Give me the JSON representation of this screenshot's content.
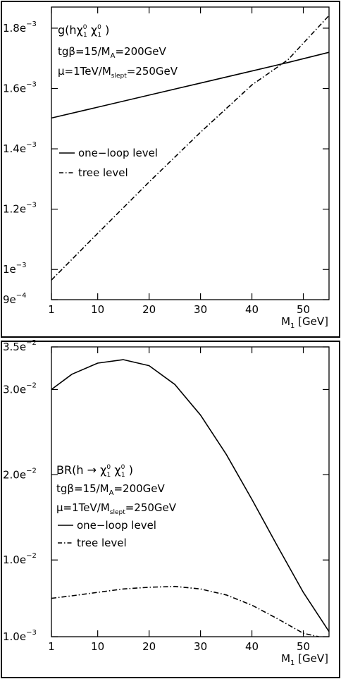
{
  "chart_data": [
    {
      "type": "line",
      "title": "g(hχ₁⁰χ₁⁰)",
      "annotations": [
        "tgβ=15/M_A=200GeV",
        "μ=1TeV/M_slept=250GeV"
      ],
      "xlabel": "M₁ [GeV]",
      "ylabel": "",
      "xlim": [
        1,
        55
      ],
      "ylim": [
        0.0009,
        0.00187
      ],
      "x_ticks": [
        {
          "value": 1,
          "label": "1"
        },
        {
          "value": 10,
          "label": "10"
        },
        {
          "value": 20,
          "label": "20"
        },
        {
          "value": 30,
          "label": "30"
        },
        {
          "value": 40,
          "label": "40"
        },
        {
          "value": 50,
          "label": "50"
        }
      ],
      "y_ticks": [
        {
          "value": 0.0009,
          "mant": "9e",
          "exp": "−4"
        },
        {
          "value": 0.001,
          "mant": "1e",
          "exp": "−3"
        },
        {
          "value": 0.0012,
          "mant": "1.2e",
          "exp": "−3"
        },
        {
          "value": 0.0014,
          "mant": "1.4e",
          "exp": "−3"
        },
        {
          "value": 0.0016,
          "mant": "1.6e",
          "exp": "−3"
        },
        {
          "value": 0.0018,
          "mant": "1.8e",
          "exp": "−3"
        }
      ],
      "grid": false,
      "legend_position": "middle-left",
      "series": [
        {
          "name": "one−loop level",
          "style": "solid",
          "x": [
            1,
            10,
            20,
            30,
            40,
            47,
            55
          ],
          "y": [
            0.001502,
            0.001538,
            0.001578,
            0.001618,
            0.001658,
            0.001686,
            0.00172
          ]
        },
        {
          "name": "tree level",
          "style": "dashdot",
          "x": [
            1,
            10,
            20,
            30,
            40,
            47,
            55
          ],
          "y": [
            0.000965,
            0.00112,
            0.00129,
            0.001455,
            0.001612,
            0.001695,
            0.001842
          ]
        }
      ]
    },
    {
      "type": "line",
      "title": "BR(h → χ₁⁰χ₁⁰)",
      "annotations": [
        "tgβ=15/M_A=200GeV",
        "μ=1TeV/M_slept=250GeV"
      ],
      "xlabel": "M₁ [GeV]",
      "ylabel": "",
      "xlim": [
        1,
        55
      ],
      "ylim": [
        0.001,
        0.035
      ],
      "x_ticks": [
        {
          "value": 1,
          "label": "1"
        },
        {
          "value": 10,
          "label": "10"
        },
        {
          "value": 20,
          "label": "20"
        },
        {
          "value": 30,
          "label": "30"
        },
        {
          "value": 40,
          "label": "40"
        },
        {
          "value": 50,
          "label": "50"
        }
      ],
      "y_ticks": [
        {
          "value": 0.001,
          "mant": "1.0e",
          "exp": "−3"
        },
        {
          "value": 0.01,
          "mant": "1.0e",
          "exp": "−2"
        },
        {
          "value": 0.02,
          "mant": "2.0e",
          "exp": "−2"
        },
        {
          "value": 0.03,
          "mant": "3.0e",
          "exp": "−2"
        },
        {
          "value": 0.035,
          "mant": "3.5e",
          "exp": "−2"
        }
      ],
      "grid": false,
      "legend_position": "middle-left",
      "series": [
        {
          "name": "one−loop level",
          "style": "solid",
          "x": [
            1,
            5,
            10,
            15,
            20,
            25,
            30,
            35,
            40,
            45,
            50,
            55
          ],
          "y": [
            0.03,
            0.0318,
            0.0331,
            0.0335,
            0.0328,
            0.0306,
            0.027,
            0.0224,
            0.0171,
            0.0116,
            0.0062,
            0.0016
          ]
        },
        {
          "name": "tree level",
          "style": "dashdot",
          "x": [
            1,
            5,
            10,
            15,
            20,
            25,
            30,
            35,
            40,
            45,
            50,
            53
          ],
          "y": [
            0.0055,
            0.0058,
            0.0062,
            0.0066,
            0.0068,
            0.0069,
            0.0066,
            0.0059,
            0.0047,
            0.0031,
            0.0014,
            0.001
          ]
        }
      ]
    }
  ]
}
